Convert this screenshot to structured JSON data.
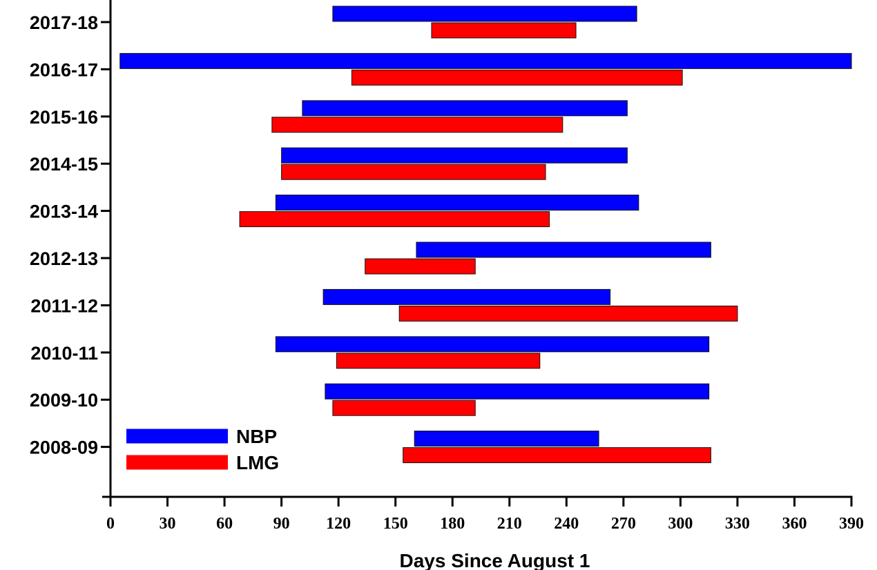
{
  "chart_data": {
    "type": "bar",
    "orientation": "horizontal-range",
    "title": "",
    "xlabel": "Days Since August 1",
    "ylabel": "",
    "xlim": [
      0,
      390
    ],
    "xticks": [
      0,
      30,
      60,
      90,
      120,
      150,
      180,
      210,
      240,
      270,
      300,
      330,
      360,
      390
    ],
    "categories": [
      "2017-18",
      "2016-17",
      "2015-16",
      "2014-15",
      "2013-14",
      "2012-13",
      "2011-12",
      "2010-11",
      "2009-10",
      "2008-09"
    ],
    "series": [
      {
        "name": "NBP",
        "color": "#0000ff",
        "ranges": [
          [
            117,
            277
          ],
          [
            5,
            390
          ],
          [
            101,
            272
          ],
          [
            90,
            272
          ],
          [
            87,
            278
          ],
          [
            161,
            316
          ],
          [
            112,
            263
          ],
          [
            87,
            315
          ],
          [
            113,
            315
          ],
          [
            160,
            257
          ]
        ]
      },
      {
        "name": "LMG",
        "color": "#ff0000",
        "ranges": [
          [
            169,
            245
          ],
          [
            127,
            301
          ],
          [
            85,
            238
          ],
          [
            90,
            229
          ],
          [
            68,
            231
          ],
          [
            134,
            192
          ],
          [
            152,
            330
          ],
          [
            119,
            226
          ],
          [
            117,
            192
          ],
          [
            154,
            316
          ]
        ]
      }
    ],
    "legend": {
      "position": "bottom-left",
      "entries": [
        "NBP",
        "LMG"
      ]
    },
    "grid": false
  }
}
